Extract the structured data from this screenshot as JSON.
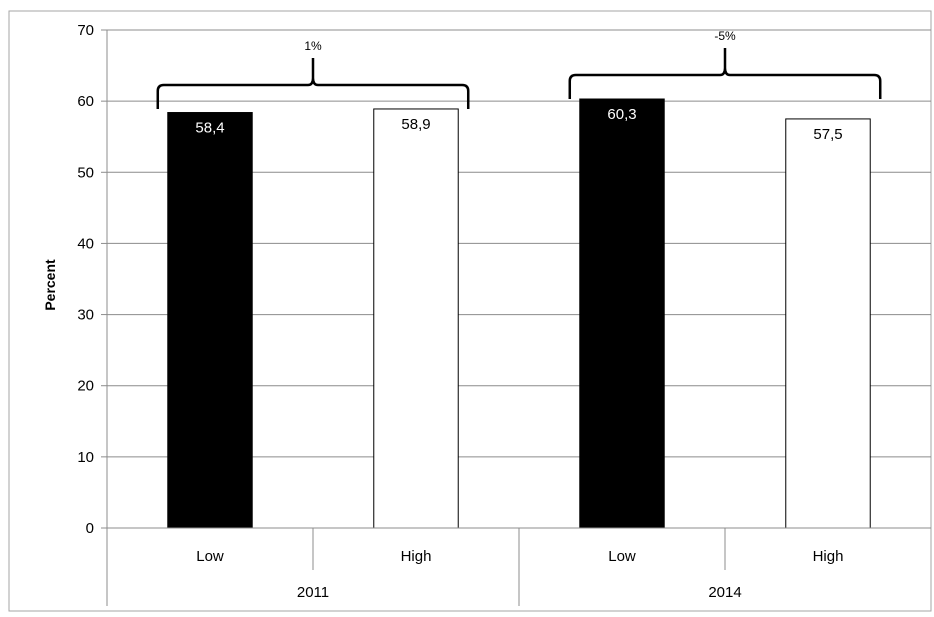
{
  "chart_data": {
    "type": "bar",
    "ylabel": "Percent",
    "ylim": [
      0,
      70
    ],
    "yticks": [
      0,
      10,
      20,
      30,
      40,
      50,
      60,
      70
    ],
    "grid": true,
    "groups": [
      {
        "label": "2011",
        "bars": [
          {
            "category": "Low",
            "value": 58.4,
            "label": "58,4",
            "color": "#000000"
          },
          {
            "category": "High",
            "value": 58.9,
            "label": "58,9",
            "color": "#ffffff"
          }
        ],
        "change": "1%"
      },
      {
        "label": "2014",
        "bars": [
          {
            "category": "Low",
            "value": 60.3,
            "label": "60,3",
            "color": "#000000"
          },
          {
            "category": "High",
            "value": 57.5,
            "label": "57,5",
            "color": "#ffffff"
          }
        ],
        "change": "-5%"
      }
    ]
  }
}
